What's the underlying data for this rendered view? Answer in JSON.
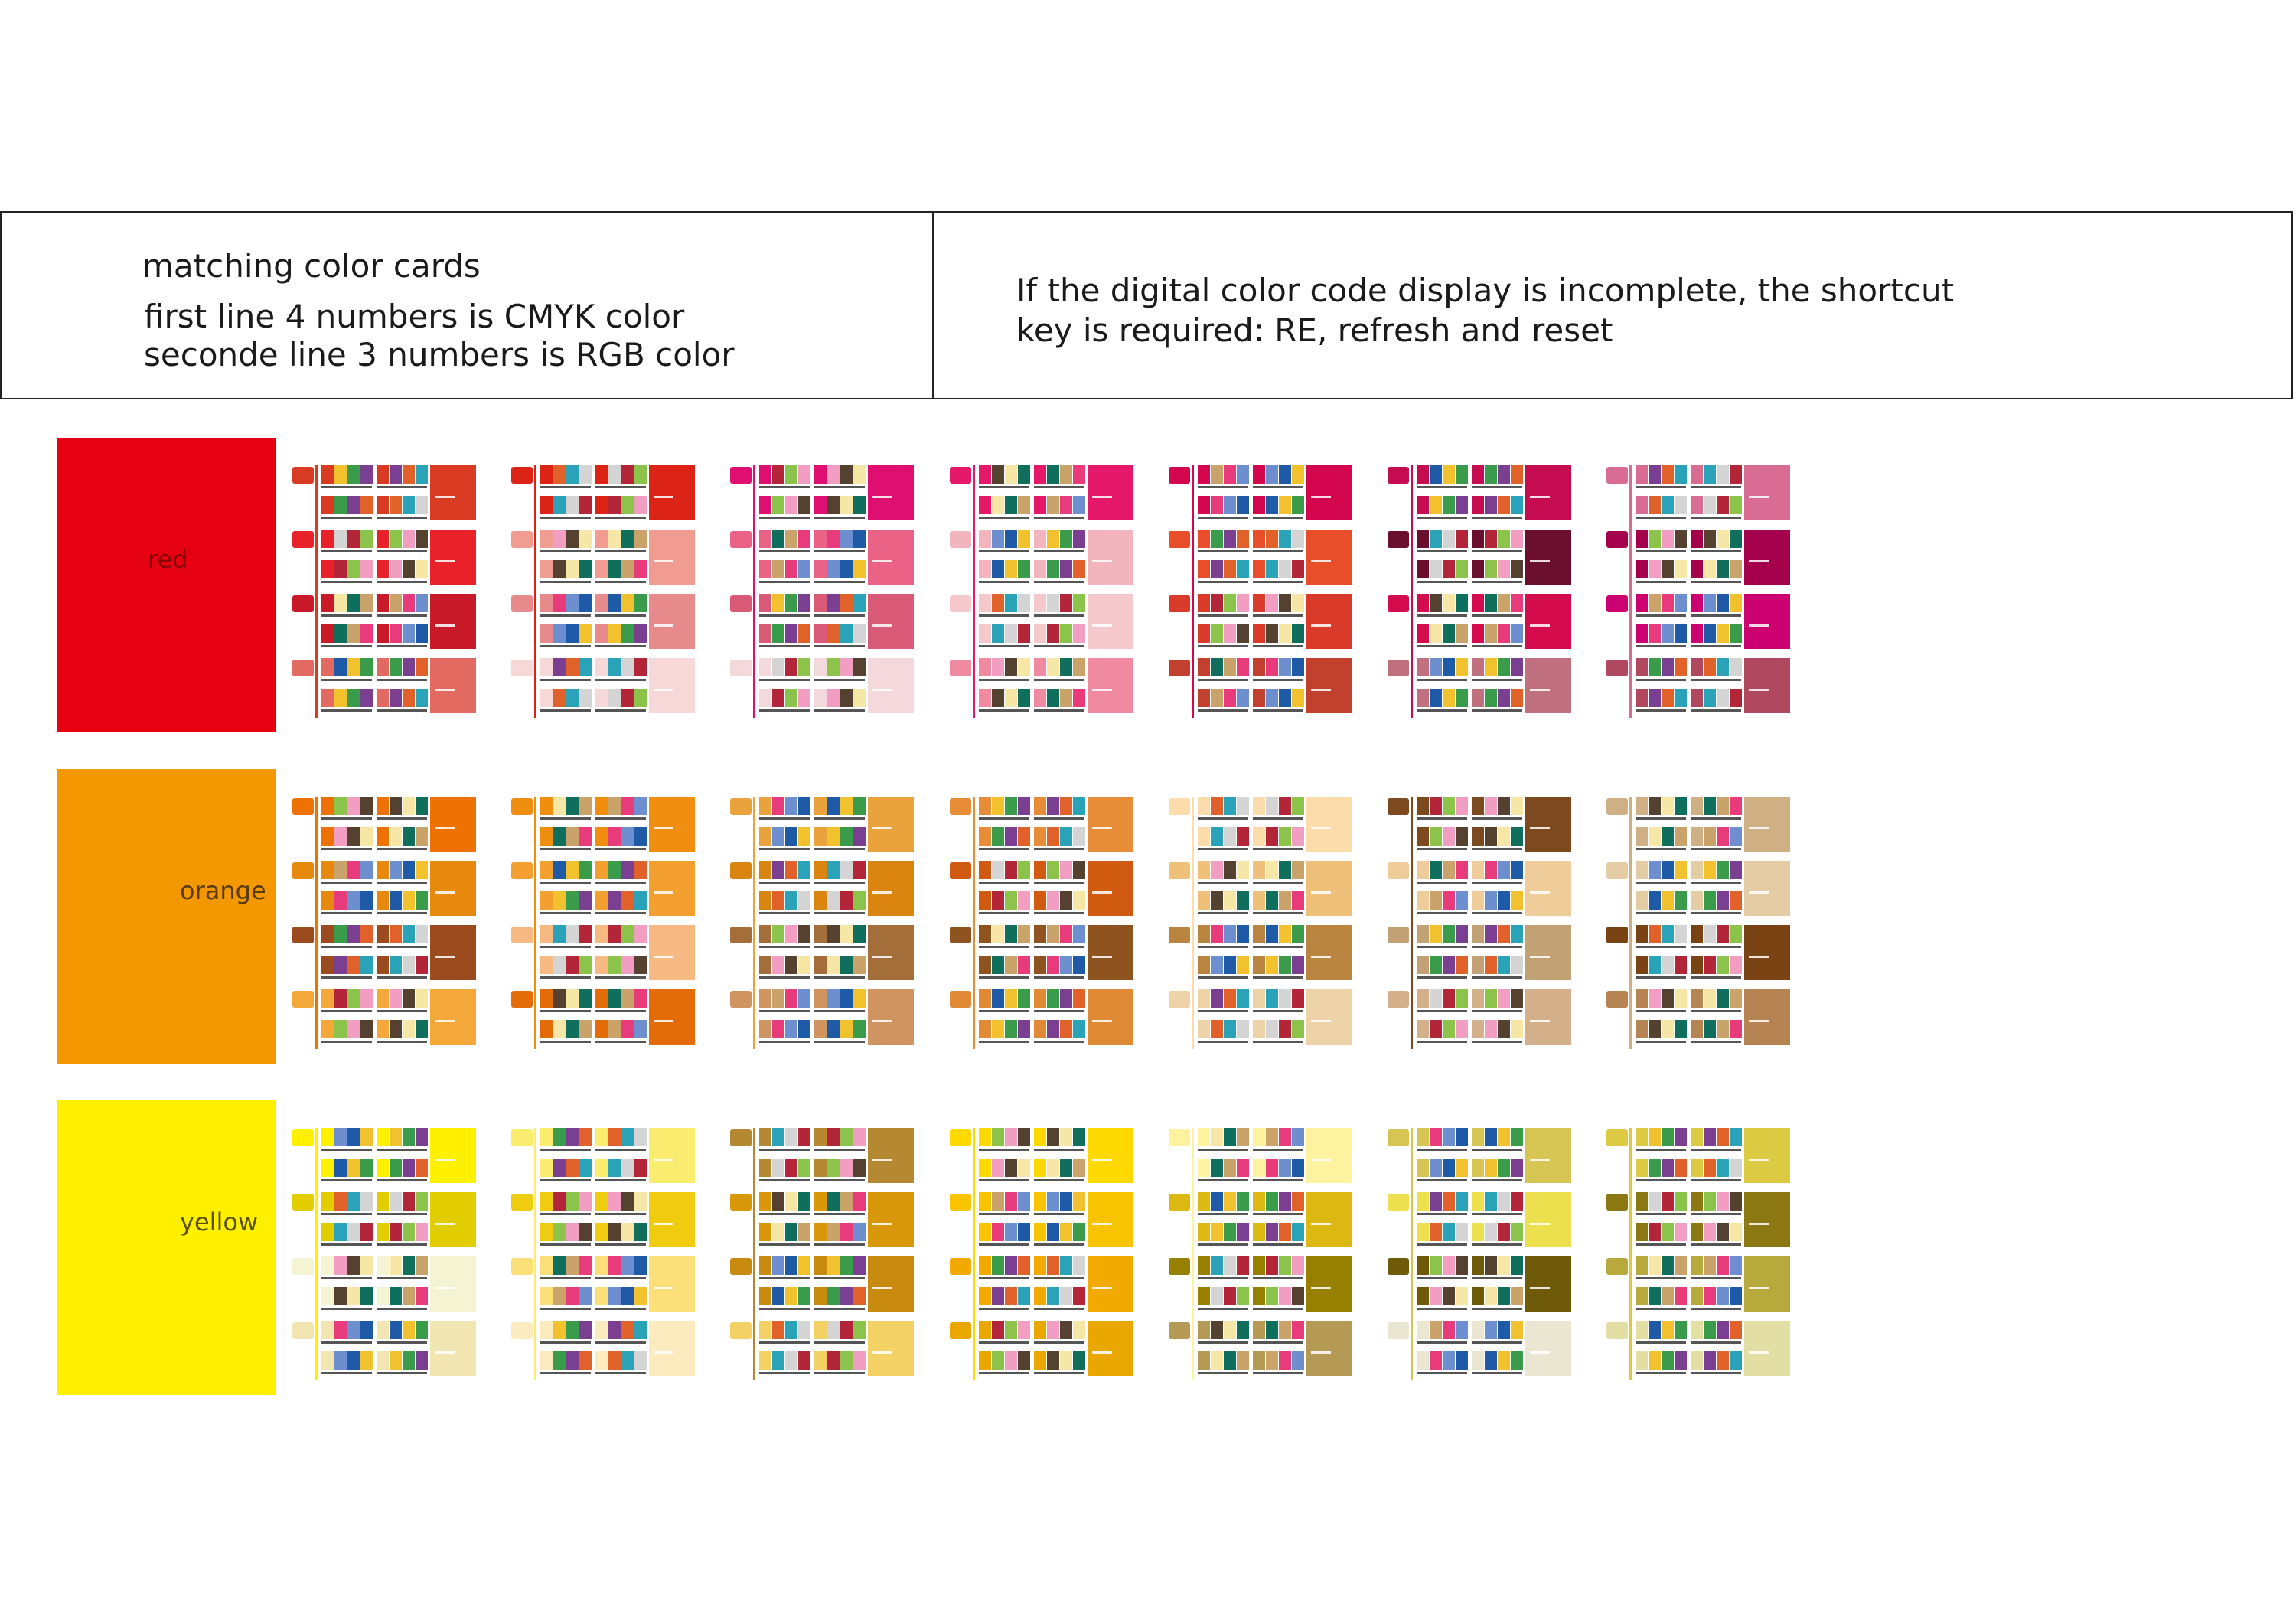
{
  "info": {
    "left_title": "matching color cards",
    "left_line1": "first line 4 numbers is CMYK color",
    "left_line2": "seconde line 3 numbers is RGB color",
    "right_text": "If the digital color code display is incomplete, the shortcut key is required: RE, refresh and reset"
  },
  "families": [
    {
      "name": "red",
      "color": "#e50012",
      "label_color": "#8c0008",
      "cards": [
        [
          "#d93a22",
          "#e8212b",
          "#c81a28",
          "#e26a60"
        ],
        [
          "#db2316",
          "#f09c90",
          "#e78a8c",
          "#f7d8d8"
        ],
        [
          "#df0f72",
          "#ea6286",
          "#d85a76",
          "#f3d8dc"
        ],
        [
          "#e5186a",
          "#f2b5be",
          "#f5c8cc",
          "#ef8aa0"
        ],
        [
          "#d3064e",
          "#e84e2a",
          "#d93a2a",
          "#c2402e"
        ],
        [
          "#c50c50",
          "#6b0f2e",
          "#d40b4c",
          "#c0707e"
        ],
        [
          "#d96c92",
          "#a4004c",
          "#cc0070",
          "#b04860"
        ]
      ]
    },
    {
      "name": "orange",
      "color": "#f39800",
      "label_color": "#5a3a10",
      "cards": [
        [
          "#ee7203",
          "#e7890c",
          "#9b4b1d",
          "#f4a83a"
        ],
        [
          "#f08e10",
          "#f3a030",
          "#f7b982",
          "#e36c08"
        ],
        [
          "#eaa33c",
          "#d9850f",
          "#a46e3a",
          "#cf9460"
        ],
        [
          "#e78d37",
          "#cf5a10",
          "#8f5320",
          "#e08a35"
        ],
        [
          "#fbdcaa",
          "#eec07a",
          "#b98540",
          "#efd3a8"
        ],
        [
          "#7d4a20",
          "#efcd9a",
          "#c2a174",
          "#d4b08a"
        ],
        [
          "#cfb084",
          "#e4cca5",
          "#7a4314",
          "#b58452"
        ]
      ]
    },
    {
      "name": "yellow",
      "color": "#fff000",
      "label_color": "#5a5300",
      "cards": [
        [
          "#fff000",
          "#e1cd00",
          "#f5f4d2",
          "#f1e6b2"
        ],
        [
          "#f9ec6e",
          "#efcc10",
          "#fbdf78",
          "#fdebc0"
        ],
        [
          "#b58932",
          "#d9980a",
          "#c98a10",
          "#f4d164"
        ],
        [
          "#fdd900",
          "#f8c400",
          "#f3aa00",
          "#e9a700"
        ],
        [
          "#fdf2a0",
          "#dcb812",
          "#978000",
          "#b49a55"
        ],
        [
          "#d6c553",
          "#ece04e",
          "#6e5a08",
          "#ebe6d2"
        ],
        [
          "#dccb42",
          "#8b7812",
          "#b8a93c",
          "#e2dea4"
        ]
      ]
    }
  ]
}
